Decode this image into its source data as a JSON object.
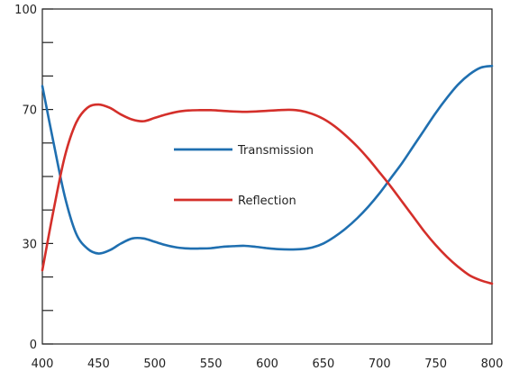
{
  "chart_data": {
    "type": "line",
    "title": "",
    "xlabel": "",
    "ylabel": "",
    "xlim": [
      400,
      800
    ],
    "ylim": [
      0,
      100
    ],
    "x_ticks": [
      400,
      450,
      500,
      550,
      600,
      650,
      700,
      750,
      800
    ],
    "y_tick_labels": [
      0,
      30,
      70,
      100
    ],
    "y_minor_ticks": [
      10,
      20,
      40,
      50,
      60,
      80,
      90
    ],
    "grid": false,
    "legend_position": "center",
    "series": [
      {
        "name": "Transmission",
        "color": "#1f6fb0",
        "points": [
          [
            400,
            77
          ],
          [
            410,
            60
          ],
          [
            420,
            44
          ],
          [
            430,
            33
          ],
          [
            440,
            28.5
          ],
          [
            450,
            27
          ],
          [
            460,
            28
          ],
          [
            470,
            30
          ],
          [
            480,
            31.5
          ],
          [
            490,
            31.5
          ],
          [
            500,
            30.5
          ],
          [
            510,
            29.5
          ],
          [
            520,
            28.8
          ],
          [
            530,
            28.5
          ],
          [
            540,
            28.5
          ],
          [
            550,
            28.6
          ],
          [
            560,
            29
          ],
          [
            570,
            29.2
          ],
          [
            580,
            29.3
          ],
          [
            590,
            29
          ],
          [
            600,
            28.6
          ],
          [
            610,
            28.3
          ],
          [
            620,
            28.2
          ],
          [
            630,
            28.3
          ],
          [
            640,
            28.8
          ],
          [
            650,
            30
          ],
          [
            660,
            32
          ],
          [
            670,
            34.5
          ],
          [
            680,
            37.5
          ],
          [
            690,
            41
          ],
          [
            700,
            45
          ],
          [
            710,
            49.5
          ],
          [
            720,
            54
          ],
          [
            730,
            59
          ],
          [
            740,
            64
          ],
          [
            750,
            69
          ],
          [
            760,
            73.5
          ],
          [
            770,
            77.5
          ],
          [
            780,
            80.5
          ],
          [
            790,
            82.5
          ],
          [
            800,
            83
          ]
        ]
      },
      {
        "name": "Reflection",
        "color": "#d42f2a",
        "points": [
          [
            400,
            22
          ],
          [
            410,
            40
          ],
          [
            420,
            56
          ],
          [
            430,
            66
          ],
          [
            440,
            70.5
          ],
          [
            450,
            71.5
          ],
          [
            460,
            70.5
          ],
          [
            470,
            68.5
          ],
          [
            480,
            67
          ],
          [
            490,
            66.5
          ],
          [
            500,
            67.5
          ],
          [
            510,
            68.5
          ],
          [
            520,
            69.3
          ],
          [
            530,
            69.7
          ],
          [
            540,
            69.8
          ],
          [
            550,
            69.8
          ],
          [
            560,
            69.6
          ],
          [
            570,
            69.4
          ],
          [
            580,
            69.3
          ],
          [
            590,
            69.4
          ],
          [
            600,
            69.6
          ],
          [
            610,
            69.8
          ],
          [
            620,
            69.9
          ],
          [
            630,
            69.6
          ],
          [
            640,
            68.7
          ],
          [
            650,
            67.2
          ],
          [
            660,
            65
          ],
          [
            670,
            62.2
          ],
          [
            680,
            59
          ],
          [
            690,
            55.3
          ],
          [
            700,
            51.2
          ],
          [
            710,
            47
          ],
          [
            720,
            42.5
          ],
          [
            730,
            38
          ],
          [
            740,
            33.5
          ],
          [
            750,
            29.5
          ],
          [
            760,
            26
          ],
          [
            770,
            23
          ],
          [
            780,
            20.5
          ],
          [
            790,
            19
          ],
          [
            800,
            18
          ]
        ]
      }
    ]
  }
}
